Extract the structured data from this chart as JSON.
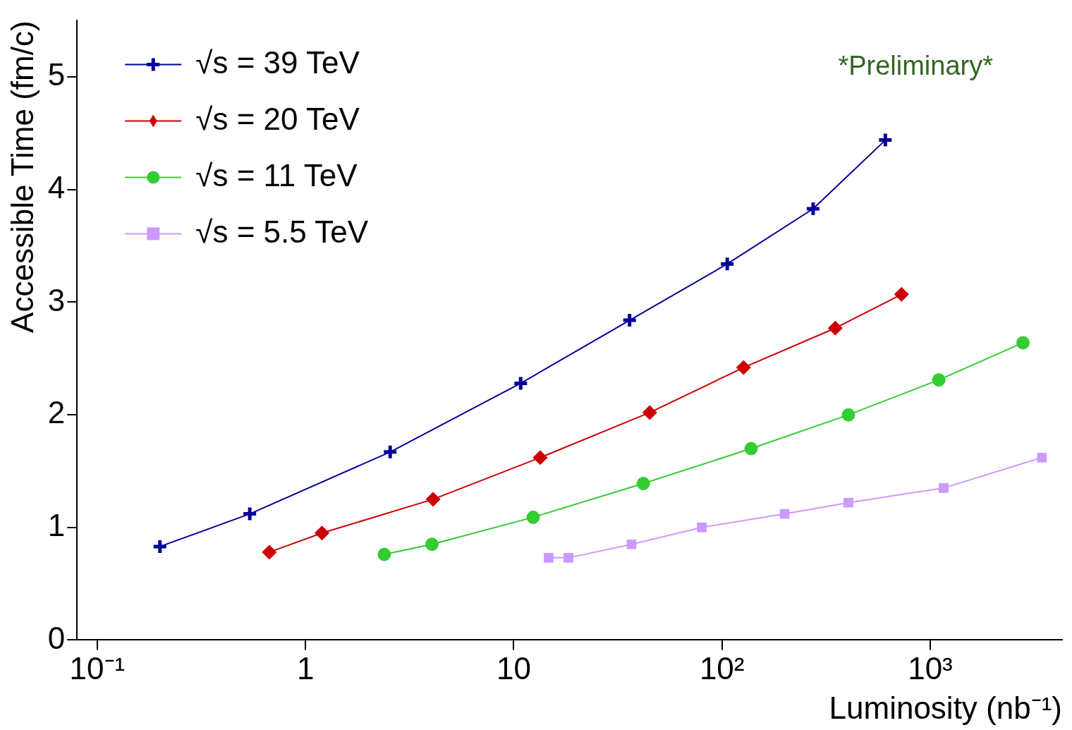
{
  "chart_data": {
    "type": "line",
    "xlabel": "Luminosity (nb⁻¹)",
    "ylabel": "Accessible Time (fm/c)",
    "log": "x",
    "grid": false,
    "legend": "top left",
    "annotations": [
      "*Preliminary*"
    ],
    "xlim": [
      0.08,
      4300
    ],
    "xticks": [
      {
        "value": 0.1,
        "label": "10⁻¹"
      },
      1,
      10,
      {
        "value": 100,
        "label": "10²"
      },
      {
        "value": 1000,
        "label": "10³"
      }
    ],
    "ylim": [
      0,
      5.5
    ],
    "yticks": [
      0,
      1,
      2,
      3,
      4,
      5
    ],
    "series": [
      {
        "name": "√s = 39 TeV",
        "color": "#000099",
        "marker": "cross",
        "x": [
          0.2,
          0.54,
          2.55,
          10.8,
          36,
          106,
          274,
          609
        ],
        "values": [
          0.83,
          1.12,
          1.67,
          2.28,
          2.84,
          3.34,
          3.83,
          4.44
        ]
      },
      {
        "name": "√s = 20 TeV",
        "color": "#cc0000",
        "marker": "diamond",
        "x": [
          0.67,
          1.2,
          4.1,
          13.4,
          45,
          127,
          350,
          728
        ],
        "values": [
          0.78,
          0.95,
          1.25,
          1.62,
          2.02,
          2.42,
          2.77,
          3.07
        ]
      },
      {
        "name": "√s = 11 TeV",
        "color": "#33cc33",
        "marker": "circle",
        "x": [
          2.39,
          4.05,
          12.4,
          41.9,
          138,
          405,
          1100,
          2790
        ],
        "values": [
          0.76,
          0.85,
          1.09,
          1.39,
          1.7,
          2.0,
          2.31,
          2.64
        ]
      },
      {
        "name": "√s = 5.5 TeV",
        "color": "#cc99ff",
        "marker": "square",
        "x": [
          14.7,
          18.3,
          36.8,
          80,
          200,
          405,
          1160,
          3440
        ],
        "values": [
          0.73,
          0.73,
          0.85,
          1.0,
          1.12,
          1.22,
          1.35,
          1.62
        ]
      }
    ]
  }
}
